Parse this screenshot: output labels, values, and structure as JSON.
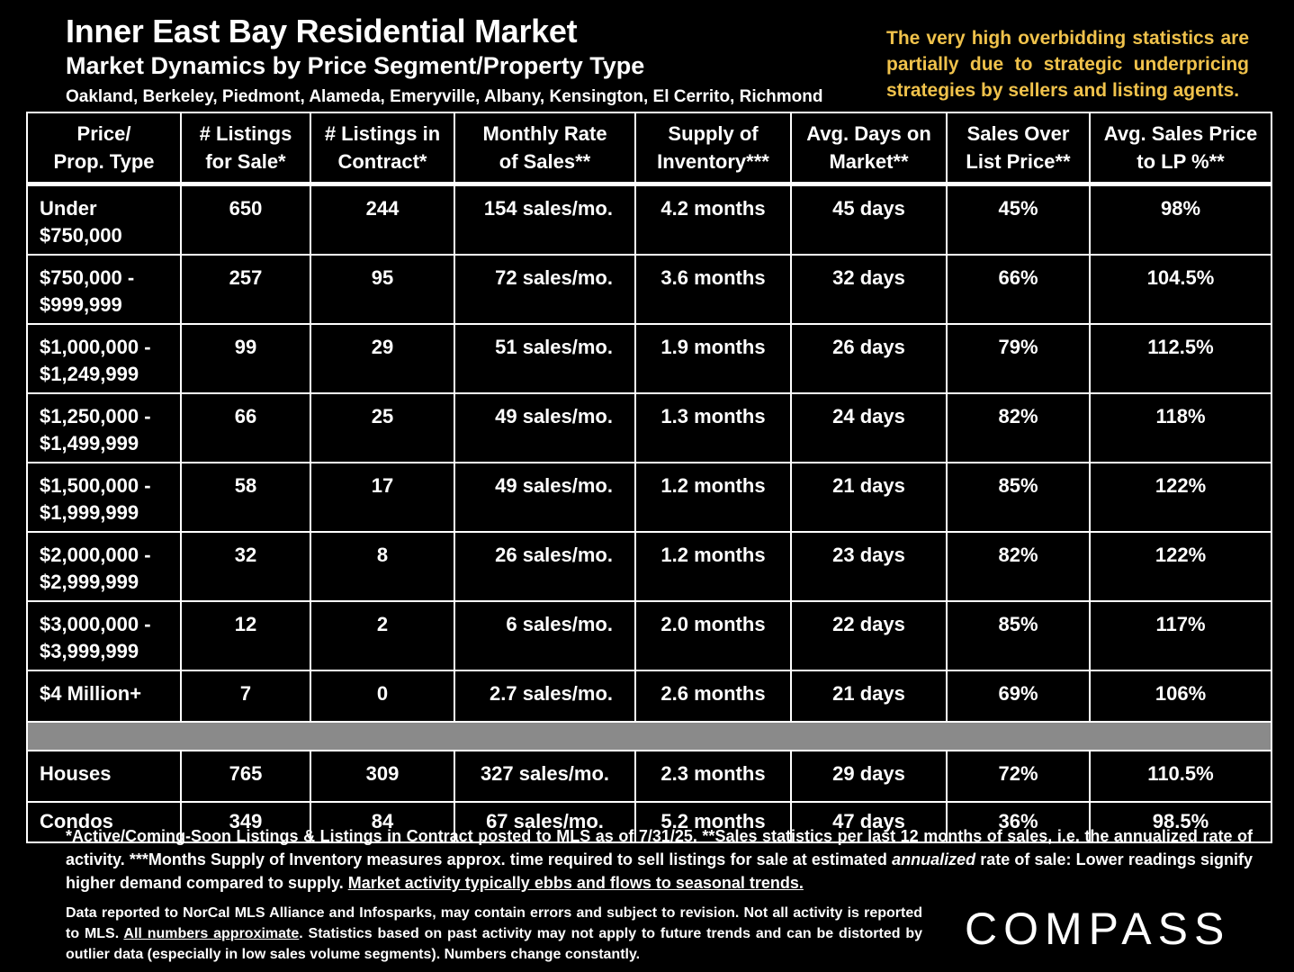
{
  "header": {
    "title": "Inner East Bay Residential Market",
    "subtitle": "Market Dynamics by Price Segment/Property Type",
    "cities": "Oakland, Berkeley, Piedmont, Alameda, Emeryville, Albany, Kensington, El Cerrito, Richmond",
    "note": "The very high overbidding statistics are partially due to strategic underpricing strategies by sellers and listing agents."
  },
  "table": {
    "columns": [
      [
        "Price/",
        "Prop. Type"
      ],
      [
        "# Listings",
        "for Sale*"
      ],
      [
        "# Listings in",
        "Contract*"
      ],
      [
        "Monthly Rate",
        "of Sales**"
      ],
      [
        "Supply of",
        "Inventory***"
      ],
      [
        "Avg. Days on",
        "Market**"
      ],
      [
        "Sales Over",
        "List Price**"
      ],
      [
        "Avg. Sales Price",
        "to LP %**"
      ]
    ],
    "segments": [
      {
        "label": [
          "Under",
          "$750,000"
        ],
        "listings": "650",
        "contract": "244",
        "rate": "154 sales/mo.",
        "supply": "4.2 months",
        "days": "45 days",
        "over": "45%",
        "price_lp": "98%"
      },
      {
        "label": [
          "$750,000 -",
          "$999,999"
        ],
        "listings": "257",
        "contract": "95",
        "rate": "72 sales/mo.",
        "supply": "3.6 months",
        "days": "32 days",
        "over": "66%",
        "price_lp": "104.5%"
      },
      {
        "label": [
          "$1,000,000 -",
          "$1,249,999"
        ],
        "listings": "99",
        "contract": "29",
        "rate": "51 sales/mo.",
        "supply": "1.9 months",
        "days": "26 days",
        "over": "79%",
        "price_lp": "112.5%"
      },
      {
        "label": [
          "$1,250,000 -",
          "$1,499,999"
        ],
        "listings": "66",
        "contract": "25",
        "rate": "49 sales/mo.",
        "supply": "1.3 months",
        "days": "24 days",
        "over": "82%",
        "price_lp": "118%"
      },
      {
        "label": [
          "$1,500,000 -",
          "$1,999,999"
        ],
        "listings": "58",
        "contract": "17",
        "rate": "49 sales/mo.",
        "supply": "1.2 months",
        "days": "21 days",
        "over": "85%",
        "price_lp": "122%"
      },
      {
        "label": [
          "$2,000,000 -",
          "$2,999,999"
        ],
        "listings": "32",
        "contract": "8",
        "rate": "26 sales/mo.",
        "supply": "1.2 months",
        "days": "23 days",
        "over": "82%",
        "price_lp": "122%"
      },
      {
        "label": [
          "$3,000,000 -",
          "$3,999,999"
        ],
        "listings": "12",
        "contract": "2",
        "rate": "6 sales/mo.",
        "supply": "2.0 months",
        "days": "22 days",
        "over": "85%",
        "price_lp": "117%"
      },
      {
        "label": [
          "$4 Million+",
          ""
        ],
        "listings": "7",
        "contract": "0",
        "rate": "2.7 sales/mo.",
        "supply": "2.6 months",
        "days": "21 days",
        "over": "69%",
        "price_lp": "106%"
      }
    ],
    "types": [
      {
        "label": "Houses",
        "listings": "765",
        "contract": "309",
        "rate": "327 sales/mo.",
        "supply": "2.3 months",
        "days": "29 days",
        "over": "72%",
        "price_lp": "110.5%"
      },
      {
        "label": "Condos",
        "listings": "349",
        "contract": "84",
        "rate": "67 sales/mo.",
        "supply": "5.2 months",
        "days": "47 days",
        "over": "36%",
        "price_lp": "98.5%"
      }
    ]
  },
  "footnotes": {
    "f1_a": "*Active/Coming-Soon Listings & Listings in Contract posted to MLS as of 7/31/25. **Sales statistics per last 12 months of sales, i.e. the annualized rate of activity.  ***Months Supply of Inventory measures approx. time required to sell listings for sale at estimated ",
    "f1_italic": "annualized",
    "f1_b": " rate of sale:  Lower readings signify higher demand compared to supply. ",
    "f1_underline": "Market activity typically ebbs and flows to seasonal trends.",
    "f2_a": "Data reported to NorCal MLS Alliance and Infosparks, may contain errors and subject to revision.  Not all activity is reported to MLS. ",
    "f2_underline": "All numbers approximate",
    "f2_b": ". Statistics based on past activity may not apply to future trends and can be distorted by outlier data (especially in low sales volume segments). Numbers change constantly."
  },
  "logo": {
    "text": "COMPASS"
  },
  "colors": {
    "background": "#000000",
    "text": "#ffffff",
    "note": "#f0c24b",
    "separator": "#8a8a8a"
  }
}
